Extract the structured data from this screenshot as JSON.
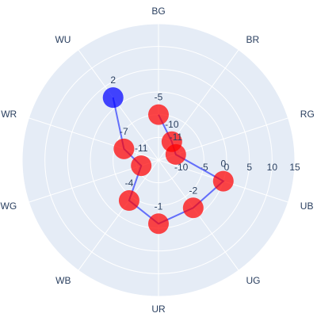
{
  "chart_data": {
    "type": "scatter",
    "subtype": "polar",
    "theta": [
      "BG",
      "BR",
      "RG",
      "UB",
      "UG",
      "UR",
      "WB",
      "WG",
      "WR",
      "WU"
    ],
    "radial_range": [
      -15,
      15
    ],
    "radial_ticks": [
      -10,
      -5,
      0,
      5,
      10,
      15
    ],
    "grid": true,
    "colors": {
      "background": "#e5ecf6",
      "grid": "#ffffff",
      "line": "#636efa",
      "positive_marker": "#0000ff",
      "negative_marker": "#ff0000",
      "text": "#2a3f5f"
    },
    "points": [
      {
        "theta": "BG",
        "r": -5,
        "label": "-5"
      },
      {
        "theta": "BR",
        "r": -10,
        "label": "-10"
      },
      {
        "theta": "RG",
        "r": -11,
        "label": "-11"
      },
      {
        "theta": "UB",
        "r": 0,
        "label": "0"
      },
      {
        "theta": "UG",
        "r": -2,
        "label": "-2"
      },
      {
        "theta": "UR",
        "r": -1,
        "label": "-1"
      },
      {
        "theta": "WB",
        "r": -4,
        "label": "-4"
      },
      {
        "theta": "WG",
        "r": -11,
        "label": "-11"
      },
      {
        "theta": "WR",
        "r": -7,
        "label": "-7"
      },
      {
        "theta": "WU",
        "r": 2,
        "label": "2"
      }
    ]
  }
}
